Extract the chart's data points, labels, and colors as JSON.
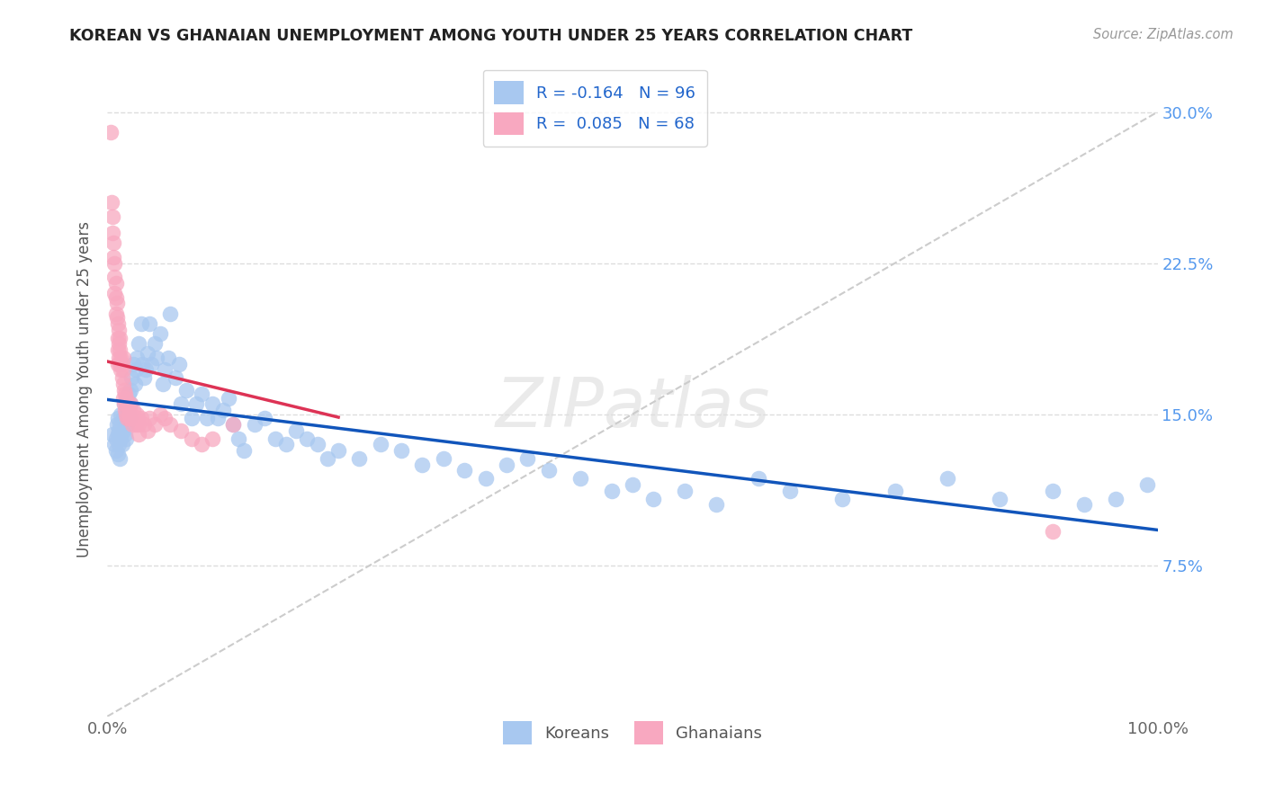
{
  "title": "KOREAN VS GHANAIAN UNEMPLOYMENT AMONG YOUTH UNDER 25 YEARS CORRELATION CHART",
  "source": "Source: ZipAtlas.com",
  "ylabel": "Unemployment Among Youth under 25 years",
  "xlim": [
    0,
    1.0
  ],
  "ylim": [
    0,
    0.325
  ],
  "xtick_positions": [
    0.0,
    0.2,
    0.4,
    0.6,
    0.8,
    1.0
  ],
  "xtick_labels": [
    "0.0%",
    "",
    "",
    "",
    "",
    "100.0%"
  ],
  "ytick_labels": [
    "7.5%",
    "15.0%",
    "22.5%",
    "30.0%"
  ],
  "ytick_vals": [
    0.075,
    0.15,
    0.225,
    0.3
  ],
  "legend_korean": "R = -0.164   N = 96",
  "legend_ghanaian": "R =  0.085   N = 68",
  "color_korean": "#A8C8F0",
  "color_ghanaian": "#F8A8C0",
  "line_korean": "#1155BB",
  "line_ghanaian": "#DD3355",
  "line_diagonal_color": "#CCCCCC",
  "watermark": "ZIPatlas",
  "korean_x": [
    0.005,
    0.007,
    0.008,
    0.008,
    0.009,
    0.01,
    0.01,
    0.01,
    0.011,
    0.011,
    0.012,
    0.012,
    0.013,
    0.013,
    0.014,
    0.015,
    0.015,
    0.016,
    0.017,
    0.018,
    0.019,
    0.02,
    0.02,
    0.021,
    0.022,
    0.022,
    0.023,
    0.025,
    0.026,
    0.027,
    0.028,
    0.03,
    0.032,
    0.033,
    0.035,
    0.037,
    0.038,
    0.04,
    0.042,
    0.045,
    0.047,
    0.05,
    0.053,
    0.055,
    0.058,
    0.06,
    0.065,
    0.068,
    0.07,
    0.075,
    0.08,
    0.085,
    0.09,
    0.095,
    0.1,
    0.105,
    0.11,
    0.115,
    0.12,
    0.125,
    0.13,
    0.14,
    0.15,
    0.16,
    0.17,
    0.18,
    0.19,
    0.2,
    0.21,
    0.22,
    0.24,
    0.26,
    0.28,
    0.3,
    0.32,
    0.34,
    0.36,
    0.38,
    0.4,
    0.42,
    0.45,
    0.48,
    0.5,
    0.52,
    0.55,
    0.58,
    0.62,
    0.65,
    0.7,
    0.75,
    0.8,
    0.85,
    0.9,
    0.93,
    0.96,
    0.99
  ],
  "korean_y": [
    0.14,
    0.135,
    0.138,
    0.132,
    0.145,
    0.13,
    0.14,
    0.148,
    0.135,
    0.142,
    0.128,
    0.145,
    0.138,
    0.15,
    0.135,
    0.142,
    0.148,
    0.155,
    0.14,
    0.138,
    0.145,
    0.15,
    0.16,
    0.148,
    0.155,
    0.162,
    0.168,
    0.175,
    0.165,
    0.172,
    0.178,
    0.185,
    0.195,
    0.175,
    0.168,
    0.172,
    0.18,
    0.195,
    0.175,
    0.185,
    0.178,
    0.19,
    0.165,
    0.172,
    0.178,
    0.2,
    0.168,
    0.175,
    0.155,
    0.162,
    0.148,
    0.155,
    0.16,
    0.148,
    0.155,
    0.148,
    0.152,
    0.158,
    0.145,
    0.138,
    0.132,
    0.145,
    0.148,
    0.138,
    0.135,
    0.142,
    0.138,
    0.135,
    0.128,
    0.132,
    0.128,
    0.135,
    0.132,
    0.125,
    0.128,
    0.122,
    0.118,
    0.125,
    0.128,
    0.122,
    0.118,
    0.112,
    0.115,
    0.108,
    0.112,
    0.105,
    0.118,
    0.112,
    0.108,
    0.112,
    0.118,
    0.108,
    0.112,
    0.105,
    0.108,
    0.115
  ],
  "ghanaian_x": [
    0.003,
    0.004,
    0.005,
    0.005,
    0.006,
    0.006,
    0.007,
    0.007,
    0.007,
    0.008,
    0.008,
    0.008,
    0.009,
    0.009,
    0.01,
    0.01,
    0.01,
    0.01,
    0.011,
    0.011,
    0.011,
    0.012,
    0.012,
    0.012,
    0.013,
    0.013,
    0.014,
    0.014,
    0.015,
    0.015,
    0.015,
    0.015,
    0.016,
    0.016,
    0.017,
    0.017,
    0.018,
    0.018,
    0.019,
    0.019,
    0.02,
    0.02,
    0.021,
    0.022,
    0.022,
    0.023,
    0.024,
    0.025,
    0.026,
    0.027,
    0.028,
    0.029,
    0.03,
    0.03,
    0.032,
    0.035,
    0.038,
    0.04,
    0.045,
    0.05,
    0.055,
    0.06,
    0.07,
    0.08,
    0.09,
    0.1,
    0.12,
    0.9
  ],
  "ghanaian_y": [
    0.29,
    0.255,
    0.248,
    0.24,
    0.235,
    0.228,
    0.225,
    0.218,
    0.21,
    0.215,
    0.208,
    0.2,
    0.205,
    0.198,
    0.195,
    0.188,
    0.182,
    0.175,
    0.192,
    0.185,
    0.178,
    0.188,
    0.182,
    0.175,
    0.178,
    0.172,
    0.175,
    0.168,
    0.172,
    0.165,
    0.158,
    0.178,
    0.162,
    0.155,
    0.16,
    0.152,
    0.158,
    0.15,
    0.155,
    0.148,
    0.155,
    0.148,
    0.152,
    0.148,
    0.155,
    0.15,
    0.145,
    0.152,
    0.148,
    0.145,
    0.15,
    0.148,
    0.145,
    0.14,
    0.148,
    0.145,
    0.142,
    0.148,
    0.145,
    0.15,
    0.148,
    0.145,
    0.142,
    0.138,
    0.135,
    0.138,
    0.145,
    0.092
  ]
}
